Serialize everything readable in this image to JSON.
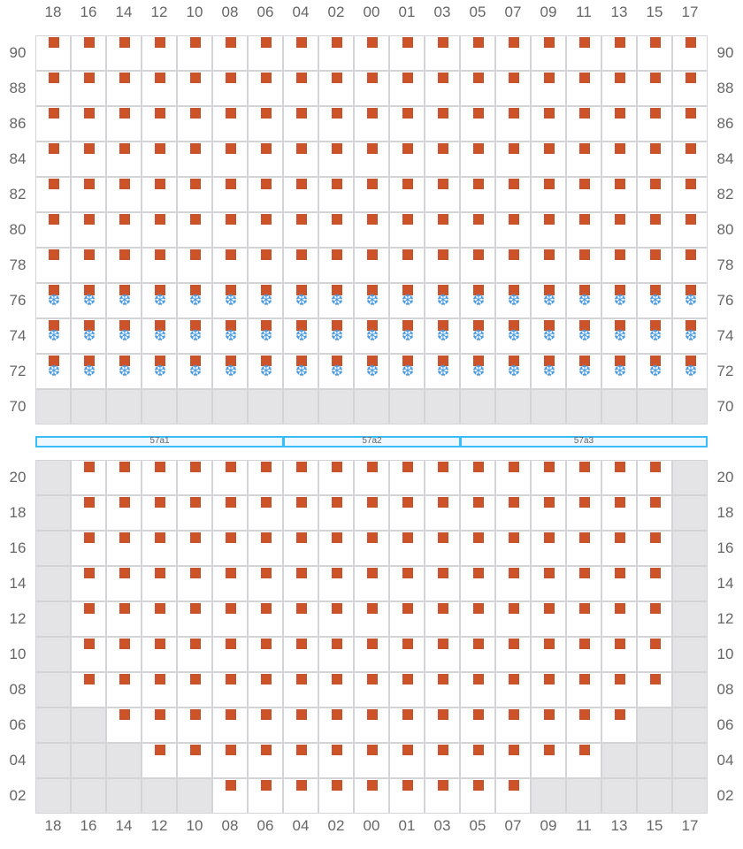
{
  "columns": [
    "18",
    "16",
    "14",
    "12",
    "10",
    "08",
    "06",
    "04",
    "02",
    "00",
    "01",
    "03",
    "05",
    "07",
    "09",
    "11",
    "13",
    "15",
    "17"
  ],
  "colors": {
    "item": "#cc5229",
    "cold": "#4a9be0",
    "unavailable": "#e4e4e7",
    "band_border": "#38bdf8",
    "grid": "#d4d4d8"
  },
  "icons": {
    "item": "square",
    "cold": "snowflake-icon"
  },
  "top_section": {
    "rows": [
      {
        "label": "90",
        "cells": "IIIIIIIIIIIIIIIIIII"
      },
      {
        "label": "88",
        "cells": "IIIIIIIIIIIIIIIIIII"
      },
      {
        "label": "86",
        "cells": "IIIIIIIIIIIIIIIIIII"
      },
      {
        "label": "84",
        "cells": "IIIIIIIIIIIIIIIIIII"
      },
      {
        "label": "82",
        "cells": "IIIIIIIIIIIIIIIIIII"
      },
      {
        "label": "80",
        "cells": "IIIIIIIIIIIIIIIIIII"
      },
      {
        "label": "78",
        "cells": "IIIIIIIIIIIIIIIIIII"
      },
      {
        "label": "76",
        "cells": "CCCCCCCCCCCCCCCCCCC"
      },
      {
        "label": "74",
        "cells": "CCCCCCCCCCCCCCCCCCC"
      },
      {
        "label": "72",
        "cells": "CCCCCCCCCCCCCCCCCCC"
      },
      {
        "label": "70",
        "cells": "XXXXXXXXXXXXXXXXXXX"
      }
    ]
  },
  "bands": [
    {
      "label": "57a1",
      "span": 7
    },
    {
      "label": "57a2",
      "span": 5
    },
    {
      "label": "57a3",
      "span": 7
    }
  ],
  "bottom_section": {
    "rows": [
      {
        "label": "20",
        "cells": "XIIIIIIIIIIIIIIIIIX"
      },
      {
        "label": "18",
        "cells": "XIIIIIIIIIIIIIIIIIX"
      },
      {
        "label": "16",
        "cells": "XIIIIIIIIIIIIIIIIIX"
      },
      {
        "label": "14",
        "cells": "XIIIIIIIIIIIIIIIIIX"
      },
      {
        "label": "12",
        "cells": "XIIIIIIIIIIIIIIIIIX"
      },
      {
        "label": "10",
        "cells": "XIIIIIIIIIIIIIIIIIX"
      },
      {
        "label": "08",
        "cells": "XIIIIIIIIIIIIIIIIIX"
      },
      {
        "label": "06",
        "cells": "XXIIIIIIIIIIIIIIIXX"
      },
      {
        "label": "04",
        "cells": "XXXIIIIIIIIIIIIIXXX"
      },
      {
        "label": "02",
        "cells": "XXXXXIIIIIIIIIXXXXX"
      }
    ]
  }
}
